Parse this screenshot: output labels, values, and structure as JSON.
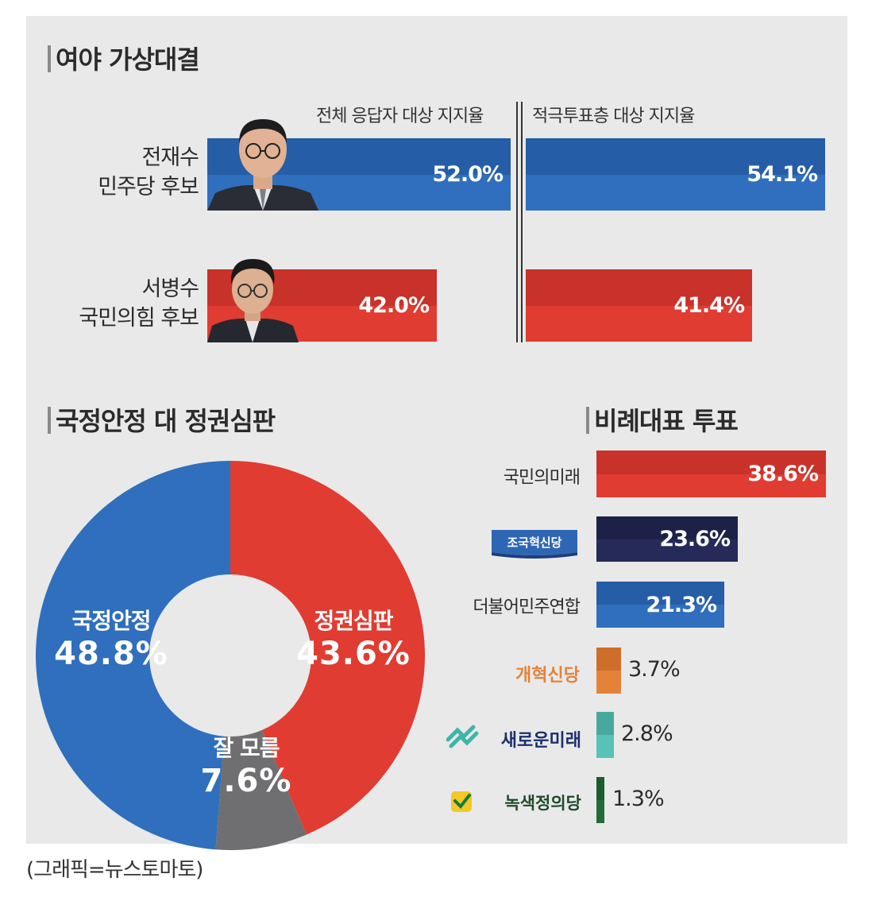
{
  "matchup": {
    "title": "여야 가상대결",
    "col_all": "전체 응답자 대상 지지율",
    "col_active": "적극투표층 대상 지지율"
  },
  "stability": {
    "title": "국정안정 대 정권심판"
  },
  "proportional": {
    "title": "비례대표 투표"
  },
  "credit": "(그래픽=뉴스토마토)",
  "colors": {
    "blue": "#2f6fbd",
    "blue_dark": "#255ea7",
    "red": "#e03c32",
    "red_dark": "#c8322a",
    "gray": "#6f6f71",
    "navy": "#232650",
    "orange": "#e5823a",
    "orange_dark": "#cf6e2b",
    "teal": "#58c2b6",
    "teal_dark": "#48a89e",
    "green": "#236b38"
  },
  "icons": [
    "candidate-photo-icon",
    "party-logo-icon"
  ],
  "chart_data": [
    {
      "type": "bar",
      "orientation": "horizontal",
      "title": "여야 가상대결",
      "categories": [
        "전재수 민주당 후보",
        "서병수 국민의힘 후보"
      ],
      "category_lines": [
        [
          "전재수",
          "민주당 후보"
        ],
        [
          "서병수",
          "국민의힘 후보"
        ]
      ],
      "series": [
        {
          "name": "전체 응답자 대상 지지율",
          "values": [
            52.0,
            42.0
          ],
          "labels": [
            "52.0%",
            "42.0%"
          ]
        },
        {
          "name": "적극투표층 대상 지지율",
          "values": [
            54.1,
            41.4
          ],
          "labels": [
            "54.1%",
            "41.4%"
          ]
        }
      ],
      "unit": "%"
    },
    {
      "type": "pie",
      "variant": "donut",
      "title": "국정안정 대 정권심판",
      "slices": [
        {
          "label": "정권심판",
          "value": 43.6,
          "display": "43.6%",
          "color": "#e03c32"
        },
        {
          "label": "잘 모름",
          "value": 7.6,
          "display": "7.6%",
          "color": "#6f6f71"
        },
        {
          "label": "국정안정",
          "value": 48.8,
          "display": "48.8%",
          "color": "#2f6fbd"
        }
      ]
    },
    {
      "type": "bar",
      "orientation": "horizontal",
      "title": "비례대표 투표",
      "categories": [
        "국민의미래",
        "조국혁신당",
        "더불어민주연합",
        "개혁신당",
        "새로운미래",
        "녹색정의당"
      ],
      "values": [
        38.6,
        23.6,
        21.3,
        3.7,
        2.8,
        1.3
      ],
      "labels": [
        "38.6%",
        "23.6%",
        "21.3%",
        "3.7%",
        "2.8%",
        "1.3%"
      ],
      "unit": "%"
    }
  ]
}
